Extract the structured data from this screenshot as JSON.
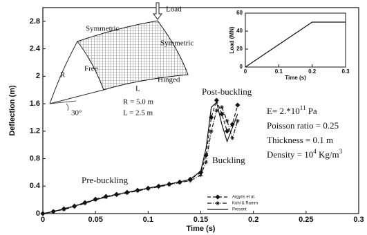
{
  "chart_data": [
    {
      "type": "line",
      "xlabel": "Time (s)",
      "ylabel": "Deflection (m)",
      "x": [
        0,
        0.01,
        0.02,
        0.03,
        0.04,
        0.05,
        0.06,
        0.07,
        0.08,
        0.09,
        0.1,
        0.11,
        0.12,
        0.13,
        0.14,
        0.15,
        0.155,
        0.16,
        0.165,
        0.17,
        0.175,
        0.18,
        0.185
      ],
      "series": [
        {
          "name": "Argyris et al.",
          "color": "#111111",
          "dash": "5 3",
          "marker": "diamond",
          "values": [
            0,
            0.03,
            0.07,
            0.11,
            0.16,
            0.21,
            0.25,
            0.28,
            0.31,
            0.34,
            0.37,
            0.4,
            0.43,
            0.46,
            0.5,
            0.6,
            0.85,
            1.4,
            1.65,
            1.45,
            1.2,
            1.3,
            1.58
          ]
        },
        {
          "name": "Kuhl & Ramm",
          "color": "#111111",
          "dash": "6 2 1 2",
          "marker": "star",
          "values": [
            0,
            0.03,
            0.06,
            0.1,
            0.15,
            0.2,
            0.24,
            0.27,
            0.3,
            0.33,
            0.36,
            0.39,
            0.42,
            0.45,
            0.48,
            0.56,
            0.75,
            1.2,
            1.5,
            1.55,
            1.35,
            1.1,
            1.35
          ]
        },
        {
          "name": "Present",
          "color": "#111111",
          "dash": "none",
          "marker": null,
          "values": [
            0,
            0.03,
            0.07,
            0.11,
            0.16,
            0.2,
            0.24,
            0.28,
            0.31,
            0.34,
            0.37,
            0.4,
            0.43,
            0.46,
            0.5,
            0.62,
            0.95,
            1.55,
            1.62,
            1.3,
            1.05,
            1.25,
            1.45
          ]
        }
      ],
      "xlim": [
        0,
        0.3
      ],
      "xticks": [
        0,
        0.05,
        0.1,
        0.15,
        0.2,
        0.25,
        0.3
      ],
      "ylim": [
        0,
        3
      ],
      "yticks": [
        0,
        0.4,
        0.8,
        1.2,
        1.6,
        2,
        2.4,
        2.8
      ],
      "legend": "lower-center",
      "annotations": {
        "post": "Post-buckling",
        "buck": "Buckling",
        "pre": "Pre-buckling",
        "e": {
          "text": "E= 2.*10",
          "sup": "11",
          "tail": " Pa"
        },
        "nu": "Poisson ratio = 0.25",
        "t": "Thickness = 0.1 m",
        "rho": {
          "text": "Density = 10",
          "sup": "4",
          "tail": " Kg/m",
          "sup2": "3"
        },
        "load": "Load",
        "sym1": "Symmetric",
        "sym2": "Symmetric",
        "free": "Free",
        "hinged": "Hinged",
        "R": "R",
        "L": "L",
        "angle": "30°",
        "rv": "R = 5.0 m",
        "lv": "L = 2.5 m"
      }
    },
    {
      "type": "line",
      "xlabel": "Time (s)",
      "ylabel": "Load (MN)",
      "x": [
        0,
        0.2,
        0.3
      ],
      "series": [
        {
          "color": "#111111",
          "values": [
            0,
            50,
            50
          ]
        }
      ],
      "xlim": [
        0,
        0.3
      ],
      "xticks": [
        0,
        0.1,
        0.2,
        0.3
      ],
      "ylim": [
        0,
        60
      ],
      "yticks": [
        0,
        20,
        40,
        60
      ]
    }
  ]
}
